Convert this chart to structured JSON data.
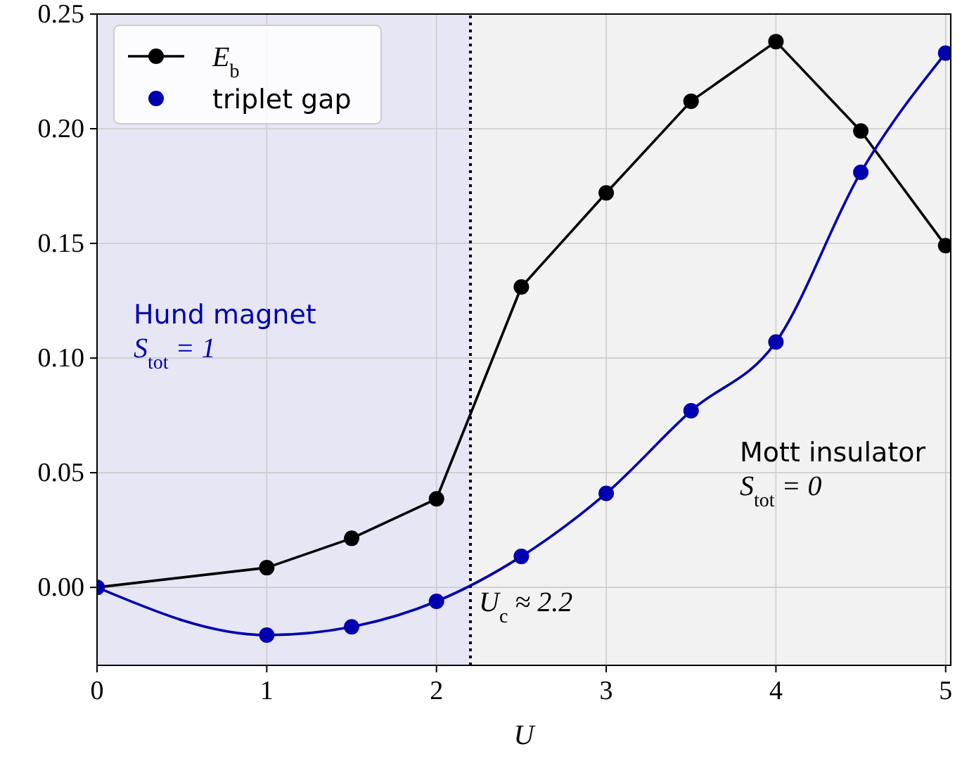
{
  "chart_data": {
    "type": "line",
    "xlabel": "U",
    "x": [
      0,
      1,
      1.5,
      2,
      2.5,
      3,
      3.5,
      4,
      4.5,
      5
    ],
    "series": [
      {
        "name": "E$_{b}$",
        "type": "line",
        "color": "#000000",
        "marker": "circle",
        "values": [
          0,
          0.0086,
          0.0214,
          0.0386,
          0.131,
          0.172,
          0.212,
          0.238,
          0.199,
          0.149
        ]
      },
      {
        "name": "triplet gap",
        "type": "scatter",
        "color": "#0000b0",
        "marker": "circle",
        "values": [
          0,
          -0.0208,
          -0.0172,
          -0.0061,
          0.0135,
          0.041,
          0.077,
          0.107,
          0.181,
          0.233
        ]
      },
      {
        "type": "line",
        "color": "#0000b0",
        "marker": "none",
        "values": [
          0,
          -0.0208,
          -0.0172,
          -0.0061,
          0.0135,
          0.041,
          0.077,
          0.107,
          0.181,
          0.233
        ]
      }
    ],
    "xlim": [
      0,
      5.03
    ],
    "xticks": [
      0,
      1,
      2,
      3,
      4,
      5
    ],
    "ylim": [
      -0.034,
      0.25
    ],
    "yticks": [
      {
        "value": 0,
        "label": "0.00"
      },
      {
        "value": 0.05,
        "label": "0.05"
      },
      {
        "value": 0.1,
        "label": "0.10"
      },
      {
        "value": 0.15,
        "label": "0.15"
      },
      {
        "value": 0.2,
        "label": "0.20"
      },
      {
        "value": 0.25,
        "label": "0.25"
      }
    ],
    "grid": true,
    "legend": "top left",
    "bands": [
      {
        "axis": "x",
        "from": 0,
        "to": 2.2,
        "label": "Hund magnet\nS$_{tot}$ = 1",
        "color": "#e6e6f5"
      },
      {
        "axis": "x",
        "from": 2.2,
        "to": 5.03,
        "label": "Mott insulator\nS$_{tot}$ = 0",
        "color": "#f2f2f2"
      }
    ],
    "ref_lines": [
      {
        "axis": "x",
        "value": 2.2,
        "label": "U$_{c}$ ≈ 2.2",
        "line_style": "dotted",
        "color": "#000000"
      }
    ]
  }
}
